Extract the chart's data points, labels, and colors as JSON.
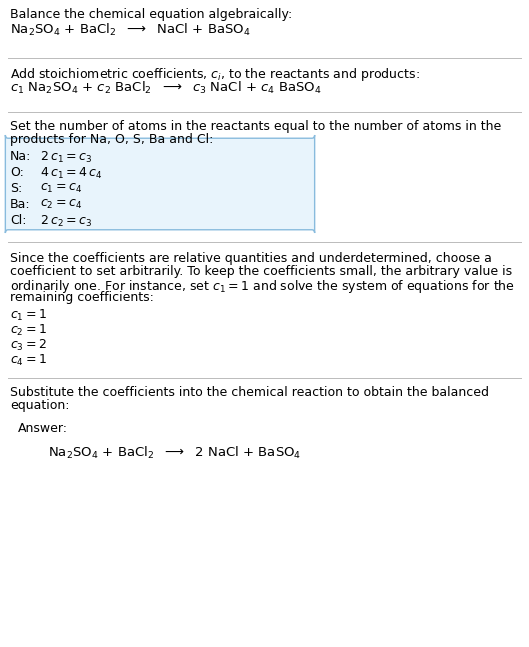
{
  "bg_color": "#ffffff",
  "text_color": "#000000",
  "line_color": "#bbbbbb",
  "answer_box_facecolor": "#e8f4fc",
  "answer_box_edge": "#88bbdd",
  "s1_title": "Balance the chemical equation algebraically:",
  "s1_eq": "Na$_2$SO$_4$ + BaCl$_2$  $\\longrightarrow$  NaCl + BaSO$_4$",
  "s2_title_a": "Add stoichiometric coefficients, $c_i$, to the reactants and products:",
  "s2_eq": "$c_1$ Na$_2$SO$_4$ + $c_2$ BaCl$_2$  $\\longrightarrow$  $c_3$ NaCl + $c_4$ BaSO$_4$",
  "s3_title_a": "Set the number of atoms in the reactants equal to the number of atoms in the",
  "s3_title_b": "products for Na, O, S, Ba and Cl:",
  "s3_rows": [
    [
      "Na:",
      "2 $c_1 = c_3$"
    ],
    [
      "O:",
      "4 $c_1 = 4\\,c_4$"
    ],
    [
      "S:",
      "$c_1 = c_4$"
    ],
    [
      "Ba:",
      "$c_2 = c_4$"
    ],
    [
      "Cl:",
      "2 $c_2 = c_3$"
    ]
  ],
  "s4_line1": "Since the coefficients are relative quantities and underdetermined, choose a",
  "s4_line2": "coefficient to set arbitrarily. To keep the coefficients small, the arbitrary value is",
  "s4_line3": "ordinarily one. For instance, set $c_1 = 1$ and solve the system of equations for the",
  "s4_line4": "remaining coefficients:",
  "s4_coeffs": [
    "$c_1 = 1$",
    "$c_2 = 1$",
    "$c_3 = 2$",
    "$c_4 = 1$"
  ],
  "s5_line1": "Substitute the coefficients into the chemical reaction to obtain the balanced",
  "s5_line2": "equation:",
  "ans_label": "Answer:",
  "ans_eq": "Na$_2$SO$_4$ + BaCl$_2$  $\\longrightarrow$  2 NaCl + BaSO$_4$",
  "fs": 9.0,
  "fs_eq": 9.5
}
